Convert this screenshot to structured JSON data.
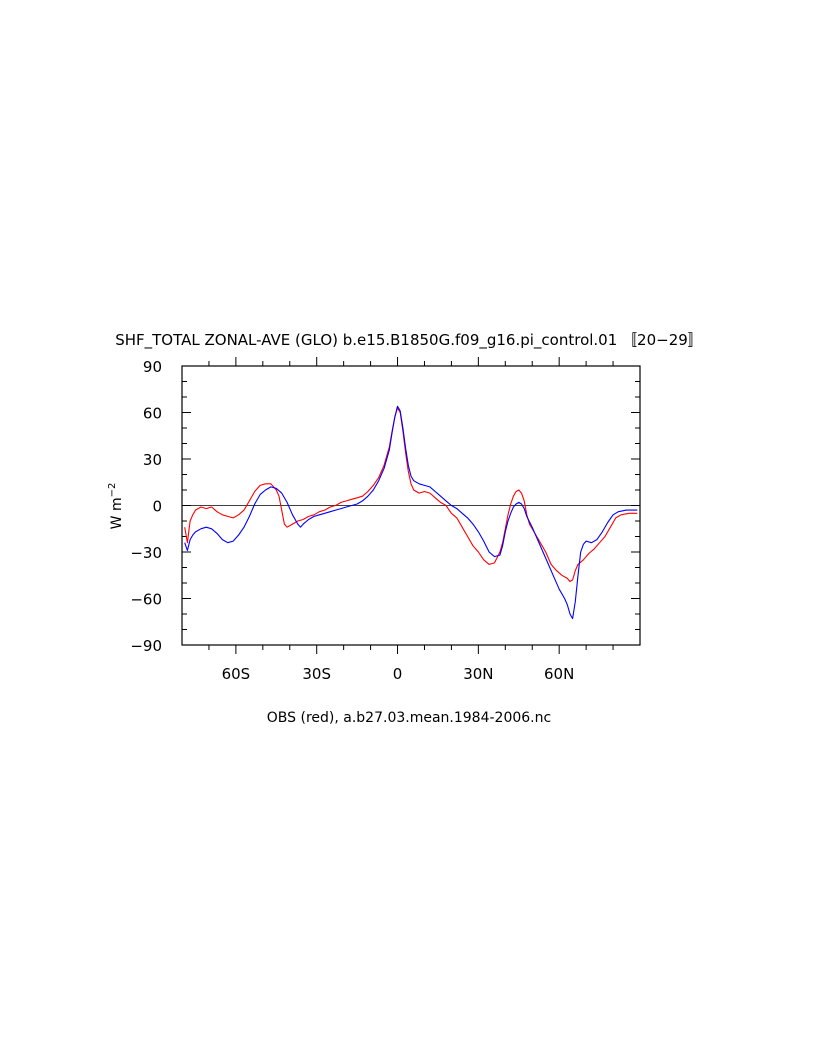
{
  "chart_data": {
    "type": "line",
    "title": "SHF_TOTAL ZONAL-AVE (GLO) b.e15.B1850G.f09_g16.pi_control.01 〚20−29〛",
    "xlabel": "OBS (red), a.b27.03.mean.1984-2006.nc",
    "ylabel": "W m",
    "ylabel_exponent": "−2",
    "xlim": [
      -80,
      90
    ],
    "ylim": [
      -90,
      90
    ],
    "x_ticks": [
      -60,
      -30,
      0,
      30,
      60
    ],
    "x_tick_labels": [
      "60S",
      "30S",
      "0",
      "30N",
      "60N"
    ],
    "y_ticks": [
      90,
      60,
      30,
      0,
      -30,
      -60,
      -90
    ],
    "y_tick_labels": [
      "90",
      "60",
      "30",
      "0",
      "−30",
      "−60",
      "−90"
    ],
    "zero_line": true,
    "series": [
      {
        "color": "#ff0000",
        "points": [
          [
            -79,
            -14
          ],
          [
            -78,
            -24
          ],
          [
            -77,
            -10
          ],
          [
            -76,
            -6
          ],
          [
            -75,
            -3
          ],
          [
            -73,
            -1
          ],
          [
            -71,
            -2
          ],
          [
            -69,
            -1
          ],
          [
            -67,
            -4
          ],
          [
            -65,
            -6
          ],
          [
            -63,
            -7
          ],
          [
            -61,
            -8
          ],
          [
            -59,
            -6
          ],
          [
            -57,
            -3
          ],
          [
            -55,
            3
          ],
          [
            -53,
            9
          ],
          [
            -51,
            13
          ],
          [
            -49,
            14
          ],
          [
            -47,
            14
          ],
          [
            -45,
            10
          ],
          [
            -44,
            6
          ],
          [
            -43,
            -3
          ],
          [
            -42,
            -12
          ],
          [
            -41,
            -14
          ],
          [
            -39,
            -12
          ],
          [
            -37,
            -10
          ],
          [
            -35,
            -9
          ],
          [
            -33,
            -7
          ],
          [
            -31,
            -6
          ],
          [
            -29,
            -4
          ],
          [
            -27,
            -3
          ],
          [
            -25,
            -1
          ],
          [
            -23,
            0
          ],
          [
            -21,
            2
          ],
          [
            -19,
            3
          ],
          [
            -17,
            4
          ],
          [
            -15,
            5
          ],
          [
            -13,
            6
          ],
          [
            -11,
            9
          ],
          [
            -9,
            13
          ],
          [
            -7,
            18
          ],
          [
            -5,
            26
          ],
          [
            -3,
            38
          ],
          [
            -2,
            48
          ],
          [
            -1,
            57
          ],
          [
            0,
            63
          ],
          [
            1,
            60
          ],
          [
            2,
            48
          ],
          [
            3,
            34
          ],
          [
            4,
            22
          ],
          [
            5,
            14
          ],
          [
            6,
            10
          ],
          [
            8,
            8
          ],
          [
            10,
            9
          ],
          [
            12,
            8
          ],
          [
            14,
            5
          ],
          [
            16,
            2
          ],
          [
            18,
            0
          ],
          [
            20,
            -5
          ],
          [
            22,
            -8
          ],
          [
            24,
            -14
          ],
          [
            26,
            -20
          ],
          [
            28,
            -26
          ],
          [
            30,
            -30
          ],
          [
            32,
            -35
          ],
          [
            34,
            -38
          ],
          [
            36,
            -37
          ],
          [
            38,
            -30
          ],
          [
            39,
            -24
          ],
          [
            40,
            -15
          ],
          [
            41,
            -6
          ],
          [
            42,
            1
          ],
          [
            43,
            6
          ],
          [
            44,
            9
          ],
          [
            45,
            10
          ],
          [
            46,
            8
          ],
          [
            47,
            3
          ],
          [
            48,
            -6
          ],
          [
            49,
            -12
          ],
          [
            51,
            -18
          ],
          [
            53,
            -24
          ],
          [
            55,
            -30
          ],
          [
            57,
            -38
          ],
          [
            59,
            -42
          ],
          [
            61,
            -45
          ],
          [
            63,
            -47
          ],
          [
            64,
            -49
          ],
          [
            65,
            -48
          ],
          [
            66,
            -42
          ],
          [
            67,
            -38
          ],
          [
            69,
            -35
          ],
          [
            71,
            -31
          ],
          [
            73,
            -28
          ],
          [
            75,
            -24
          ],
          [
            77,
            -20
          ],
          [
            79,
            -14
          ],
          [
            81,
            -8
          ],
          [
            83,
            -6
          ],
          [
            86,
            -5
          ],
          [
            89,
            -5
          ]
        ]
      },
      {
        "color": "#0000ff",
        "points": [
          [
            -79,
            -24
          ],
          [
            -78,
            -29
          ],
          [
            -77,
            -22
          ],
          [
            -76,
            -19
          ],
          [
            -75,
            -17
          ],
          [
            -73,
            -15
          ],
          [
            -71,
            -14
          ],
          [
            -69,
            -15
          ],
          [
            -67,
            -18
          ],
          [
            -65,
            -22
          ],
          [
            -63,
            -24
          ],
          [
            -61,
            -23
          ],
          [
            -59,
            -19
          ],
          [
            -57,
            -14
          ],
          [
            -55,
            -7
          ],
          [
            -53,
            1
          ],
          [
            -51,
            7
          ],
          [
            -49,
            10
          ],
          [
            -47,
            12
          ],
          [
            -45,
            11
          ],
          [
            -43,
            8
          ],
          [
            -41,
            2
          ],
          [
            -39,
            -6
          ],
          [
            -37,
            -12
          ],
          [
            -36,
            -14
          ],
          [
            -35,
            -12
          ],
          [
            -33,
            -9
          ],
          [
            -31,
            -7
          ],
          [
            -29,
            -6
          ],
          [
            -27,
            -5
          ],
          [
            -25,
            -4
          ],
          [
            -23,
            -3
          ],
          [
            -21,
            -2
          ],
          [
            -19,
            -1
          ],
          [
            -17,
            0
          ],
          [
            -15,
            1
          ],
          [
            -13,
            3
          ],
          [
            -11,
            6
          ],
          [
            -9,
            10
          ],
          [
            -7,
            16
          ],
          [
            -5,
            24
          ],
          [
            -3,
            36
          ],
          [
            -2,
            47
          ],
          [
            -1,
            57
          ],
          [
            0,
            64
          ],
          [
            1,
            61
          ],
          [
            2,
            50
          ],
          [
            3,
            37
          ],
          [
            4,
            26
          ],
          [
            5,
            19
          ],
          [
            6,
            16
          ],
          [
            8,
            14
          ],
          [
            10,
            13
          ],
          [
            12,
            12
          ],
          [
            14,
            9
          ],
          [
            16,
            6
          ],
          [
            18,
            3
          ],
          [
            20,
            0
          ],
          [
            22,
            -2
          ],
          [
            24,
            -5
          ],
          [
            26,
            -8
          ],
          [
            28,
            -12
          ],
          [
            30,
            -17
          ],
          [
            32,
            -23
          ],
          [
            34,
            -30
          ],
          [
            36,
            -33
          ],
          [
            38,
            -32
          ],
          [
            39,
            -26
          ],
          [
            40,
            -17
          ],
          [
            41,
            -10
          ],
          [
            42,
            -5
          ],
          [
            43,
            -1
          ],
          [
            44,
            1
          ],
          [
            45,
            2
          ],
          [
            46,
            1
          ],
          [
            47,
            -2
          ],
          [
            48,
            -7
          ],
          [
            50,
            -14
          ],
          [
            52,
            -22
          ],
          [
            54,
            -30
          ],
          [
            56,
            -38
          ],
          [
            58,
            -46
          ],
          [
            60,
            -54
          ],
          [
            62,
            -60
          ],
          [
            63,
            -64
          ],
          [
            64,
            -70
          ],
          [
            65,
            -73
          ],
          [
            66,
            -62
          ],
          [
            67,
            -45
          ],
          [
            68,
            -30
          ],
          [
            69,
            -25
          ],
          [
            70,
            -23
          ],
          [
            72,
            -24
          ],
          [
            74,
            -22
          ],
          [
            76,
            -17
          ],
          [
            78,
            -11
          ],
          [
            80,
            -6
          ],
          [
            82,
            -4
          ],
          [
            85,
            -3
          ],
          [
            89,
            -3
          ]
        ]
      }
    ]
  }
}
